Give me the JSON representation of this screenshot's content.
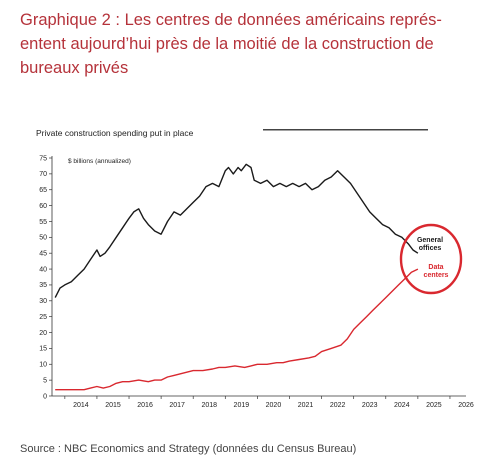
{
  "header": {
    "title": "Graphique 2 : Les centres de données américains représ-entent aujourd’hui près de la moitié de la construction de bureaux privés"
  },
  "footer": {
    "source": "Source : NBC Economics and Strategy (données du Census Bureau)"
  },
  "colors": {
    "title": "#b5323a",
    "general_offices": "#1a1a1a",
    "data_centers": "#d9282f",
    "circle": "#d9282f"
  },
  "chart_data": {
    "type": "line",
    "title": "Private construction spending put in place",
    "ylabel": "$ billions (annualized)",
    "xlabel": "",
    "ylim": [
      0,
      75
    ],
    "xlim": [
      2013.6,
      2026.5
    ],
    "yticks": [
      0,
      5,
      10,
      15,
      20,
      25,
      30,
      35,
      40,
      45,
      50,
      55,
      60,
      65,
      70,
      75
    ],
    "xticks": [
      "2014",
      "2015",
      "2016",
      "2017",
      "2018",
      "2019",
      "2020",
      "2021",
      "2022",
      "2023",
      "2024",
      "2025",
      "2026"
    ],
    "grid": false,
    "series": [
      {
        "name": "General offices",
        "label_lines": [
          "General",
          "offices"
        ],
        "x": [
          2013.7,
          2013.85,
          2014.0,
          2014.2,
          2014.4,
          2014.6,
          2014.8,
          2015.0,
          2015.1,
          2015.25,
          2015.4,
          2015.6,
          2015.8,
          2016.0,
          2016.15,
          2016.3,
          2016.45,
          2016.6,
          2016.8,
          2017.0,
          2017.2,
          2017.4,
          2017.6,
          2017.8,
          2018.0,
          2018.2,
          2018.4,
          2018.6,
          2018.8,
          2019.0,
          2019.1,
          2019.25,
          2019.4,
          2019.5,
          2019.65,
          2019.8,
          2019.9,
          2020.1,
          2020.3,
          2020.5,
          2020.7,
          2020.9,
          2021.1,
          2021.3,
          2021.5,
          2021.7,
          2021.9,
          2022.1,
          2022.3,
          2022.5,
          2022.7,
          2022.9,
          2023.1,
          2023.3,
          2023.5,
          2023.7,
          2023.9,
          2024.1,
          2024.3,
          2024.5,
          2024.7,
          2024.85,
          2025.0
        ],
        "values": [
          31,
          34,
          35,
          36,
          38,
          40,
          43,
          46,
          44,
          45,
          47,
          50,
          53,
          56,
          58,
          59,
          56,
          54,
          52,
          51,
          55,
          58,
          57,
          59,
          61,
          63,
          66,
          67,
          66,
          71,
          72,
          70,
          72,
          71,
          73,
          72,
          68,
          67,
          68,
          66,
          67,
          66,
          67,
          66,
          67,
          65,
          66,
          68,
          69,
          71,
          69,
          67,
          64,
          61,
          58,
          56,
          54,
          53,
          51,
          50,
          48,
          46,
          45
        ]
      },
      {
        "name": "Data centers",
        "label_lines": [
          "Data",
          "centers"
        ],
        "x": [
          2013.7,
          2014.0,
          2014.3,
          2014.6,
          2014.8,
          2015.0,
          2015.2,
          2015.4,
          2015.6,
          2015.8,
          2016.0,
          2016.3,
          2016.6,
          2016.8,
          2017.0,
          2017.2,
          2017.4,
          2017.6,
          2017.8,
          2018.0,
          2018.3,
          2018.6,
          2018.8,
          2019.0,
          2019.3,
          2019.6,
          2019.8,
          2020.0,
          2020.3,
          2020.6,
          2020.8,
          2021.0,
          2021.3,
          2021.6,
          2021.8,
          2022.0,
          2022.3,
          2022.6,
          2022.8,
          2023.0,
          2023.2,
          2023.4,
          2023.6,
          2023.8,
          2024.0,
          2024.2,
          2024.4,
          2024.6,
          2024.8,
          2025.0
        ],
        "values": [
          2,
          2,
          2,
          2,
          2.5,
          3,
          2.5,
          3,
          4,
          4.5,
          4.5,
          5,
          4.5,
          5,
          5,
          6,
          6.5,
          7,
          7.5,
          8,
          8,
          8.5,
          9,
          9,
          9.5,
          9,
          9.5,
          10,
          10,
          10.5,
          10.5,
          11,
          11.5,
          12,
          12.5,
          14,
          15,
          16,
          18,
          21,
          23,
          25,
          27,
          29,
          31,
          33,
          35,
          37,
          39,
          40
        ]
      }
    ]
  }
}
